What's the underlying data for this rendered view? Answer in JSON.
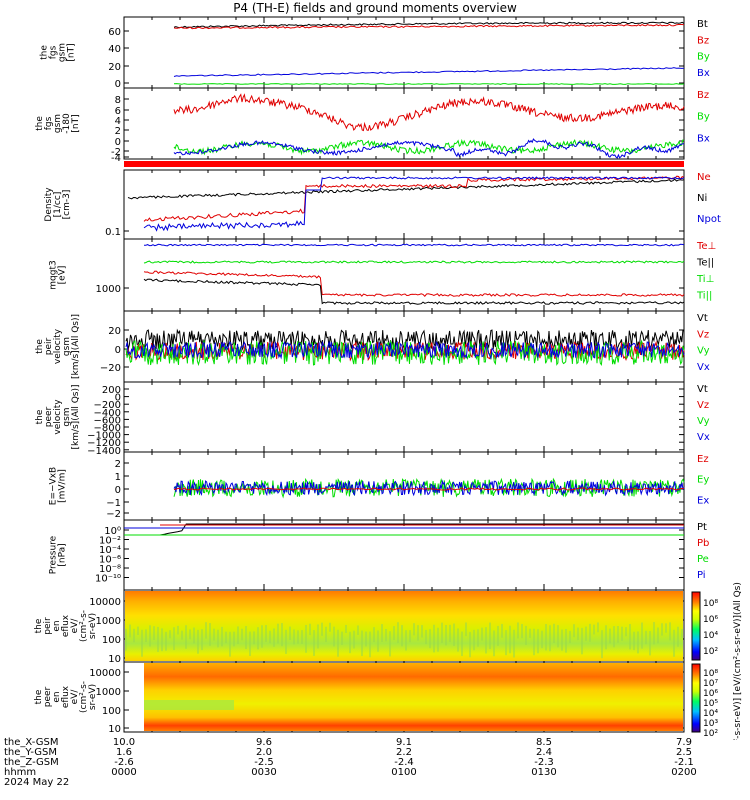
{
  "title": "P4 (TH-E) fields and ground moments overview",
  "colors": {
    "black": "#000000",
    "red": "#e00000",
    "green": "#00dd00",
    "blue": "#0000dd"
  },
  "panels": [
    {
      "id": "fgs",
      "ylabel": [
        "the",
        "fgs",
        "gsm",
        "[nT]"
      ],
      "yticks": [
        "60",
        "40",
        "20",
        "0"
      ],
      "legend": [
        {
          "text": "Bt",
          "color": "black"
        },
        {
          "text": "Bz",
          "color": "red"
        },
        {
          "text": "By",
          "color": "green"
        },
        {
          "text": "Bx",
          "color": "blue"
        }
      ]
    },
    {
      "id": "fgs_zoom",
      "ylabel": [
        "the",
        "fgs",
        "gsm",
        "-180",
        "[nT]"
      ],
      "yticks": [
        "8",
        "6",
        "4",
        "2",
        "0",
        "-2",
        "-4"
      ],
      "legend": [
        {
          "text": "Bz",
          "color": "red"
        },
        {
          "text": "By",
          "color": "green"
        },
        {
          "text": "Bx",
          "color": "blue"
        }
      ]
    },
    {
      "id": "density",
      "ylabel": [
        "Density",
        "[1/cc]",
        "[cm-3]"
      ],
      "yticks": [
        "0.1"
      ],
      "legend": [
        {
          "text": "Ne",
          "color": "red"
        },
        {
          "text": "Ni",
          "color": "black"
        },
        {
          "text": "Npot",
          "color": "blue"
        }
      ]
    },
    {
      "id": "temp",
      "ylabel": [
        "mqgt3",
        "[eV]"
      ],
      "yticks": [
        "1000"
      ],
      "legend": [
        {
          "text": "Te⊥",
          "color": "red"
        },
        {
          "text": "Te||",
          "color": "black"
        },
        {
          "text": "Ti⊥",
          "color": "green"
        },
        {
          "text": "Ti||",
          "color": "green"
        }
      ]
    },
    {
      "id": "peir_vel",
      "ylabel": [
        "the",
        "peir",
        "velocity",
        "gsm",
        "[km/s](All Qs)]"
      ],
      "yticks": [
        "20",
        "0",
        "−20"
      ],
      "legend": [
        {
          "text": "Vt",
          "color": "black"
        },
        {
          "text": "Vz",
          "color": "red"
        },
        {
          "text": "Vy",
          "color": "green"
        },
        {
          "text": "Vx",
          "color": "blue"
        }
      ]
    },
    {
      "id": "peer_vel",
      "ylabel": [
        "the",
        "peer",
        "velocity",
        "gsm",
        "[km/s](All Qs)]"
      ],
      "yticks": [
        "200",
        "0",
        "−200",
        "−400",
        "−600",
        "−800",
        "−1000",
        "−1200",
        "−1400"
      ],
      "legend": [
        {
          "text": "Vt",
          "color": "black"
        },
        {
          "text": "Vz",
          "color": "red"
        },
        {
          "text": "Vy",
          "color": "green"
        },
        {
          "text": "Vx",
          "color": "blue"
        }
      ]
    },
    {
      "id": "efield",
      "ylabel": [
        "E=−VxB",
        "[mV/m]"
      ],
      "yticks": [
        "2",
        "1",
        "0",
        "−1",
        "−2"
      ],
      "legend": [
        {
          "text": "Ez",
          "color": "red"
        },
        {
          "text": "Ey",
          "color": "green"
        },
        {
          "text": "Ex",
          "color": "blue"
        }
      ]
    },
    {
      "id": "pressure",
      "ylabel": [
        "Pressure",
        "[nPa]"
      ],
      "yticks": [
        "10⁰",
        "10⁻²",
        "10⁻⁴",
        "10⁻⁶",
        "10⁻⁸",
        "10⁻¹⁰"
      ],
      "legend": [
        {
          "text": "Pt",
          "color": "black"
        },
        {
          "text": "Pb",
          "color": "red"
        },
        {
          "text": "Pe",
          "color": "green"
        },
        {
          "text": "Pi",
          "color": "blue"
        }
      ]
    },
    {
      "id": "peir_spec",
      "ylabel": [
        "the",
        "peir",
        "en",
        "eflux",
        "eV/",
        "(cm²-s-",
        "sr-eV)"
      ],
      "yticks": [
        "10000",
        "1000",
        "100",
        "10"
      ],
      "legend": []
    },
    {
      "id": "peer_spec",
      "ylabel": [
        "the",
        "peer",
        "en",
        "eflux",
        "eV/",
        "(cm²-s-",
        "sr-eV)"
      ],
      "yticks": [
        "10000",
        "1000",
        "100",
        "10"
      ],
      "legend": []
    }
  ],
  "colorbar": {
    "ticks_top": [
      "10⁸",
      "10⁶",
      "10⁴",
      "10²"
    ],
    "ticks_bottom": [
      "10⁸",
      "10⁷",
      "10⁶",
      "10⁵",
      "10⁴",
      "10³",
      "10²"
    ],
    "label": "[eV/(cm²-s-sr-eV)] [eV/(cm²-s-sr-eV)](All Qs)"
  },
  "ephemeris": {
    "rows": [
      {
        "name": "the_X-GSM",
        "values": [
          "10.0",
          "9.6",
          "9.1",
          "8.5",
          "7.9"
        ]
      },
      {
        "name": "the_Y-GSM",
        "values": [
          "1.6",
          "2.0",
          "2.2",
          "2.4",
          "2.5"
        ]
      },
      {
        "name": "the_Z-GSM",
        "values": [
          "-2.6",
          "-2.5",
          "-2.4",
          "-2.3",
          "-2.1"
        ]
      },
      {
        "name": "hhmm",
        "values": [
          "0000",
          "0030",
          "0100",
          "0130",
          "0200"
        ]
      }
    ],
    "date": "2024 May 22"
  },
  "chart_data": [
    {
      "type": "line",
      "title": "P4 (TH-E) fields and ground moments overview",
      "ylabel": "the fgs gsm [nT]",
      "ylim": [
        -5,
        75
      ],
      "x": [
        "0000",
        "0200"
      ],
      "series": [
        {
          "name": "Bt",
          "values": [
            65,
            70
          ]
        },
        {
          "name": "Bz",
          "values": [
            64,
            70
          ]
        },
        {
          "name": "By",
          "values": [
            1,
            1
          ]
        },
        {
          "name": "Bx",
          "values": [
            5,
            15
          ]
        }
      ]
    },
    {
      "type": "line",
      "ylabel": "the fgs gsm -180 [nT]",
      "ylim": [
        -5,
        9
      ],
      "series": [
        {
          "name": "Bz",
          "values": [
            4,
            8,
            2,
            6,
            4
          ]
        },
        {
          "name": "By",
          "values": [
            -3,
            -2,
            -2,
            -3,
            -3
          ]
        },
        {
          "name": "Bx",
          "values": [
            -3,
            -3,
            -4,
            -4,
            -3
          ]
        }
      ]
    },
    {
      "type": "line",
      "ylabel": "Density [1/cc]",
      "series": [
        {
          "name": "Ne",
          "values": [
            0.13,
            0.25,
            0.35
          ]
        },
        {
          "name": "Ni",
          "values": [
            0.25,
            0.28,
            0.33
          ]
        },
        {
          "name": "Npot",
          "values": [
            0.1,
            0.3,
            0.35
          ]
        }
      ]
    },
    {
      "type": "line",
      "ylabel": "mqgt3 [eV]",
      "series": [
        {
          "name": "Te⊥"
        },
        {
          "name": "Te||"
        },
        {
          "name": "Ti⊥"
        },
        {
          "name": "Ti||"
        }
      ]
    },
    {
      "type": "line",
      "ylabel": "the peir velocity gsm [km/s](All Qs)]",
      "ylim": [
        -30,
        35
      ],
      "series": [
        {
          "name": "Vt"
        },
        {
          "name": "Vz"
        },
        {
          "name": "Vy"
        },
        {
          "name": "Vx"
        }
      ]
    },
    {
      "type": "line",
      "ylabel": "the peer velocity gsm [km/s](All Qs)]",
      "ylim": [
        -1500,
        250
      ],
      "series": []
    },
    {
      "type": "line",
      "ylabel": "E=−VxB [mV/m]",
      "ylim": [
        -2.7,
        2.7
      ],
      "series": [
        {
          "name": "Ez"
        },
        {
          "name": "Ey"
        },
        {
          "name": "Ex"
        }
      ]
    },
    {
      "type": "line",
      "ylabel": "Pressure [nPa]",
      "yscale": "log",
      "series": [
        {
          "name": "Pt"
        },
        {
          "name": "Pb"
        },
        {
          "name": "Pe"
        },
        {
          "name": "Pi"
        }
      ]
    },
    {
      "type": "heatmap",
      "ylabel": "the peir en eflux eV/(cm2-s-sr-eV)",
      "yscale": "log",
      "ylim": [
        7,
        15000
      ]
    },
    {
      "type": "heatmap",
      "ylabel": "the peer en eflux eV/(cm2-s-sr-eV)",
      "yscale": "log",
      "ylim": [
        7,
        15000
      ]
    }
  ]
}
